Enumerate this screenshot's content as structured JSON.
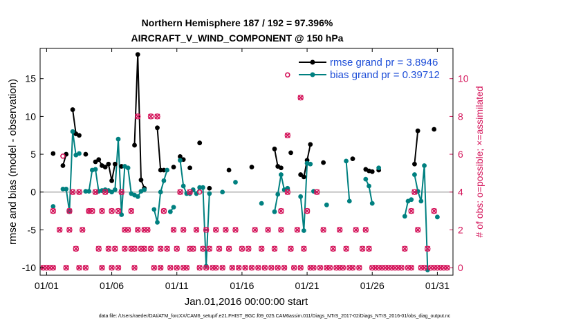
{
  "chart_data": {
    "type": "line",
    "title": [
      "Northern Hemisphere 187 / 192 = 97.396%",
      "AIRCRAFT_V_WIND_COMPONENT @ 150 hPa"
    ],
    "xlabel": "Jan.01,2016 00:00:00 start",
    "ylabel": "rmse and bias (model - observation)",
    "y2label": "# of obs: o=possible; ×=assimilated",
    "footnote": "data file: /Users/raeder/DAI/ATM_forcXX/CAM6_setup/f.e21.FHIST_BGC.f09_025.CAM6assim.011/Diags_NTrS_2017-02/Diags_NTrS_2016-01/obs_diag_output.nc",
    "xlim": [
      0.5,
      32.2
    ],
    "ylim": [
      -11,
      19
    ],
    "y2lim": [
      -0.4,
      11.6
    ],
    "x_ticks": [
      1,
      6,
      11,
      16,
      21,
      26,
      31
    ],
    "x_tick_labels": [
      "01/01",
      "01/06",
      "01/11",
      "01/16",
      "01/21",
      "01/26",
      "01/31"
    ],
    "y_ticks": [
      -10,
      -5,
      0,
      5,
      10,
      15
    ],
    "y_tick_labels": [
      "-10",
      "-5",
      "0",
      "5",
      "10",
      "15"
    ],
    "y2_ticks": [
      0,
      2,
      4,
      6,
      8,
      10
    ],
    "y2_tick_labels": [
      "0",
      "2",
      "4",
      "6",
      "8",
      "10"
    ],
    "legend": {
      "position": "top-right",
      "rmse_label": "rmse grand pr = 3.8946",
      "bias_label": "bias grand pr = 0.39712"
    },
    "colors": {
      "rmse": "#000000",
      "bias": "#008080",
      "obs": "#d4145a",
      "zero": "#b0b0b0"
    },
    "series": [
      {
        "name": "rmse",
        "axis": "left",
        "color": "#000000",
        "points": [
          [
            1.5,
            5.1
          ],
          null,
          [
            2.25,
            3.5
          ],
          [
            2.5,
            5.0
          ],
          null,
          [
            3.0,
            10.9
          ],
          [
            3.25,
            7.7
          ],
          [
            3.5,
            7.5
          ],
          null,
          [
            4.0,
            5.0
          ],
          null,
          [
            4.75,
            4.0
          ],
          [
            5.0,
            4.3
          ],
          [
            5.25,
            3.5
          ],
          [
            5.5,
            3.3
          ],
          null,
          [
            5.75,
            3.7
          ],
          [
            6.0,
            1.5
          ],
          [
            6.25,
            3.7
          ],
          null,
          [
            6.75,
            3.4
          ],
          null,
          [
            7.75,
            6.2
          ],
          [
            8.0,
            18.2
          ],
          [
            8.25,
            1.6
          ],
          [
            8.5,
            0.5
          ],
          null,
          [
            9.5,
            8.5
          ],
          [
            9.75,
            2.9
          ],
          [
            10.0,
            2.9
          ],
          null,
          [
            10.75,
            3.3
          ],
          null,
          [
            11.25,
            4.7
          ],
          [
            11.5,
            4.3
          ],
          null,
          [
            12.0,
            3.2
          ],
          null,
          [
            12.75,
            6.5
          ],
          null,
          [
            13.5,
            0.5
          ],
          null,
          [
            15.0,
            2.9
          ],
          null,
          [
            16.75,
            3.3
          ],
          null,
          [
            18.5,
            5.7
          ],
          [
            18.75,
            3.4
          ],
          [
            19.0,
            3.2
          ],
          null,
          [
            19.75,
            5.2
          ],
          null,
          [
            20.5,
            2.3
          ],
          [
            20.75,
            2.0
          ],
          [
            21.0,
            4.2
          ],
          [
            21.25,
            6.3
          ],
          null,
          [
            22.25,
            3.9
          ],
          null,
          [
            24.5,
            4.4
          ],
          null,
          [
            25.5,
            3.0
          ],
          [
            25.75,
            2.8
          ],
          [
            26.0,
            2.7
          ],
          null,
          [
            26.5,
            2.9
          ],
          null,
          [
            29.25,
            3.7
          ],
          [
            29.5,
            8.1
          ],
          null,
          [
            30.75,
            8.3
          ]
        ]
      },
      {
        "name": "bias",
        "axis": "left",
        "color": "#008080",
        "points": [
          [
            1.5,
            -1.9
          ],
          null,
          [
            2.25,
            0.4
          ],
          [
            2.5,
            0.4
          ],
          [
            2.75,
            -2.6
          ],
          [
            3.0,
            8.0
          ],
          [
            3.25,
            4.9
          ],
          [
            3.5,
            5.1
          ],
          null,
          [
            4.0,
            0.1
          ],
          [
            4.25,
            0.1
          ],
          [
            4.5,
            2.9
          ],
          [
            4.75,
            3.0
          ],
          [
            5.0,
            0.1
          ],
          [
            5.25,
            0.2
          ],
          [
            5.5,
            0.3
          ],
          [
            5.75,
            0.2
          ],
          [
            6.0,
            0.0
          ],
          [
            6.25,
            0.3
          ],
          [
            6.5,
            7.0
          ],
          [
            6.75,
            -3.0
          ],
          [
            7.0,
            3.4
          ],
          [
            7.25,
            3.2
          ],
          [
            7.5,
            -0.2
          ],
          [
            7.75,
            -0.4
          ],
          [
            8.0,
            -0.6
          ],
          [
            8.25,
            0.1
          ],
          [
            8.5,
            0.3
          ],
          null,
          [
            9.25,
            -2.3
          ],
          [
            9.5,
            -4.0
          ],
          [
            9.75,
            0.0
          ],
          [
            10.0,
            1.5
          ],
          [
            10.25,
            2.9
          ],
          null,
          [
            10.5,
            -2.6
          ],
          [
            10.75,
            -2.0
          ],
          null,
          [
            11.25,
            4.2
          ],
          [
            11.5,
            0.8
          ],
          [
            11.75,
            -0.2
          ],
          null,
          [
            12.0,
            -0.2
          ],
          [
            12.25,
            0.3
          ],
          [
            12.5,
            -0.2
          ],
          [
            12.75,
            0.6
          ],
          [
            13.0,
            0.6
          ],
          [
            13.25,
            -9.8
          ],
          [
            13.5,
            -0.2
          ],
          null,
          [
            14.5,
            0.0
          ],
          null,
          [
            15.5,
            1.3
          ],
          null,
          [
            17.5,
            -1.5
          ],
          null,
          [
            18.5,
            -2.6
          ],
          [
            18.75,
            -0.3
          ],
          [
            19.0,
            2.3
          ],
          [
            19.25,
            0.3
          ],
          [
            19.5,
            0.5
          ],
          null,
          [
            20.5,
            -0.6
          ],
          [
            20.75,
            -5.1
          ],
          [
            21.0,
            3.8
          ],
          [
            21.25,
            3.7
          ],
          null,
          [
            21.5,
            0.1
          ],
          null,
          [
            22.5,
            -1.7
          ],
          null,
          [
            24.0,
            4.1
          ],
          [
            24.25,
            -1.2
          ],
          null,
          [
            25.5,
            1.7
          ],
          [
            25.75,
            0.8
          ],
          [
            26.0,
            -1.5
          ],
          null,
          [
            26.5,
            3.2
          ],
          null,
          [
            28.5,
            -3.2
          ],
          [
            28.75,
            -1.2
          ],
          [
            29.0,
            -1.0
          ],
          null,
          [
            29.25,
            2.3
          ],
          [
            29.5,
            0.1
          ],
          [
            29.75,
            -1.2
          ],
          [
            30.0,
            3.5
          ],
          [
            30.25,
            -10.3
          ],
          null,
          [
            31.0,
            -3.3
          ]
        ]
      }
    ],
    "obs_assimilated": [
      [
        0.75,
        0
      ],
      [
        1.0,
        0
      ],
      [
        1.25,
        0
      ],
      [
        1.5,
        0
      ],
      [
        1.5,
        3
      ],
      [
        2.0,
        2
      ],
      [
        2.5,
        0
      ],
      [
        2.75,
        3
      ],
      [
        2.75,
        2
      ],
      [
        3.0,
        4
      ],
      [
        3.25,
        1
      ],
      [
        3.5,
        0
      ],
      [
        3.5,
        4
      ],
      [
        3.75,
        2
      ],
      [
        4.0,
        0
      ],
      [
        4.25,
        3
      ],
      [
        4.5,
        3
      ],
      [
        4.75,
        4
      ],
      [
        5.0,
        1
      ],
      [
        5.25,
        0
      ],
      [
        5.25,
        3
      ],
      [
        5.5,
        4
      ],
      [
        5.75,
        1
      ],
      [
        6.0,
        0
      ],
      [
        6.0,
        3
      ],
      [
        6.25,
        1
      ],
      [
        6.5,
        0
      ],
      [
        6.5,
        3
      ],
      [
        6.75,
        4
      ],
      [
        7.0,
        1
      ],
      [
        7.0,
        2
      ],
      [
        7.25,
        2
      ],
      [
        7.5,
        1
      ],
      [
        7.5,
        3
      ],
      [
        7.75,
        0
      ],
      [
        7.75,
        1
      ],
      [
        8.0,
        2
      ],
      [
        8.0,
        8
      ],
      [
        8.25,
        1
      ],
      [
        8.5,
        2
      ],
      [
        8.5,
        1
      ],
      [
        8.75,
        2
      ],
      [
        9.0,
        1
      ],
      [
        9.0,
        8
      ],
      [
        9.25,
        0
      ],
      [
        9.5,
        8
      ],
      [
        9.75,
        0
      ],
      [
        9.75,
        1
      ],
      [
        10.0,
        3
      ],
      [
        10.25,
        1
      ],
      [
        10.5,
        0
      ],
      [
        10.75,
        2
      ],
      [
        11.0,
        0
      ],
      [
        11.0,
        1
      ],
      [
        11.25,
        4
      ],
      [
        11.5,
        2
      ],
      [
        11.5,
        0
      ],
      [
        11.75,
        0
      ],
      [
        12.0,
        1
      ],
      [
        12.0,
        4
      ],
      [
        12.25,
        1
      ],
      [
        12.5,
        2
      ],
      [
        12.75,
        0
      ],
      [
        13.0,
        1
      ],
      [
        13.25,
        2
      ],
      [
        13.25,
        0
      ],
      [
        13.5,
        1
      ],
      [
        13.75,
        0
      ],
      [
        14.0,
        2
      ],
      [
        14.0,
        0
      ],
      [
        14.25,
        1
      ],
      [
        14.5,
        0
      ],
      [
        14.75,
        2
      ],
      [
        15.0,
        1
      ],
      [
        15.25,
        0
      ],
      [
        15.5,
        2
      ],
      [
        15.75,
        0
      ],
      [
        16.0,
        1
      ],
      [
        16.25,
        0
      ],
      [
        16.5,
        1
      ],
      [
        16.75,
        0
      ],
      [
        17.0,
        2
      ],
      [
        17.25,
        0
      ],
      [
        17.5,
        1
      ],
      [
        17.75,
        0
      ],
      [
        18.0,
        2
      ],
      [
        18.25,
        0
      ],
      [
        18.5,
        1
      ],
      [
        18.75,
        0
      ],
      [
        19.0,
        2
      ],
      [
        19.0,
        3
      ],
      [
        19.25,
        0
      ],
      [
        19.5,
        7
      ],
      [
        19.5,
        4
      ],
      [
        19.75,
        1
      ],
      [
        20.0,
        0
      ],
      [
        20.25,
        2
      ],
      [
        20.5,
        9
      ],
      [
        20.5,
        0
      ],
      [
        20.75,
        1
      ],
      [
        21.0,
        3
      ],
      [
        21.25,
        0
      ],
      [
        21.5,
        0
      ],
      [
        21.75,
        4
      ],
      [
        22.0,
        0
      ],
      [
        22.25,
        2
      ],
      [
        22.5,
        0
      ],
      [
        22.75,
        0
      ],
      [
        23.0,
        1
      ],
      [
        23.25,
        0
      ],
      [
        23.5,
        0
      ],
      [
        23.5,
        2
      ],
      [
        23.75,
        0
      ],
      [
        24.0,
        1
      ],
      [
        24.25,
        0
      ],
      [
        24.5,
        0
      ],
      [
        24.75,
        2
      ],
      [
        25.0,
        0
      ],
      [
        25.25,
        1
      ],
      [
        25.5,
        2
      ],
      [
        25.75,
        1
      ],
      [
        26.0,
        0
      ],
      [
        26.25,
        0
      ],
      [
        26.5,
        0
      ],
      [
        26.75,
        0
      ],
      [
        27.0,
        0
      ],
      [
        27.25,
        0
      ],
      [
        27.5,
        0
      ],
      [
        27.75,
        0
      ],
      [
        28.0,
        0
      ],
      [
        28.25,
        0
      ],
      [
        28.5,
        1
      ],
      [
        28.75,
        0
      ],
      [
        29.0,
        0
      ],
      [
        29.0,
        3
      ],
      [
        29.25,
        4
      ],
      [
        29.5,
        2
      ],
      [
        29.75,
        0
      ],
      [
        30.0,
        0
      ],
      [
        30.25,
        1
      ],
      [
        30.5,
        0
      ],
      [
        30.75,
        0
      ],
      [
        30.75,
        3
      ],
      [
        31.0,
        0
      ],
      [
        31.25,
        0
      ],
      [
        31.5,
        0
      ],
      [
        31.75,
        0
      ]
    ],
    "obs_possible_only": [
      [
        2.25,
        5.9
      ],
      [
        4.25,
        3.0
      ],
      [
        12.75,
        4.0
      ],
      [
        19.5,
        10.2
      ]
    ]
  }
}
